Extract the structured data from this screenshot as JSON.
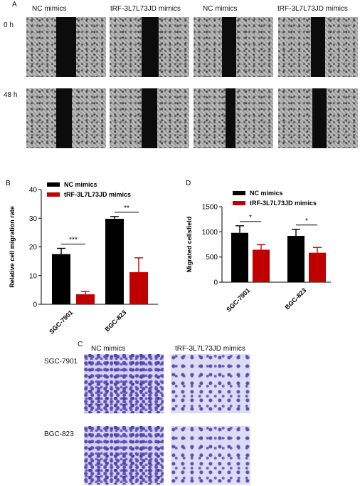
{
  "panel_a": {
    "letter": "A",
    "column_labels": [
      "NC mimics",
      "tRF-3L7L73JD mimics",
      "NC mimics",
      "tRF-3L7L73JD mimics"
    ],
    "row_labels": [
      "0  h",
      "48  h"
    ]
  },
  "panel_c": {
    "letter": "C",
    "column_labels": [
      "NC mimics",
      "tRF-3L7L73JD mimics"
    ],
    "row_labels": [
      "SGC-7901",
      "BGC-823"
    ]
  },
  "chart_data": [
    {
      "type": "bar",
      "panel": "B",
      "categories": [
        "SGC-7901",
        "BGC-823"
      ],
      "series": [
        {
          "name": "NC mimics",
          "values": [
            17.5,
            29.8
          ],
          "errors": [
            2.0,
            0.8
          ],
          "color": "#000000"
        },
        {
          "name": "tRF-3L7L73JD mimics",
          "values": [
            3.5,
            11.2
          ],
          "errors": [
            1.0,
            5.0
          ],
          "color": "#c00000"
        }
      ],
      "ylabel": "Relative cell migration rate",
      "ylim": [
        0,
        40
      ],
      "yticks": [
        0,
        10,
        20,
        30,
        40
      ],
      "significance": [
        "***",
        "**"
      ]
    },
    {
      "type": "bar",
      "panel": "D",
      "categories": [
        "SGC-7901",
        "BGC-823"
      ],
      "series": [
        {
          "name": "NC mimics",
          "values": [
            980,
            920
          ],
          "errors": [
            140,
            130
          ],
          "color": "#000000"
        },
        {
          "name": "tRF-3L7L73JD mimics",
          "values": [
            645,
            585
          ],
          "errors": [
            100,
            105
          ],
          "color": "#c00000"
        }
      ],
      "ylabel": "Migrated cellsfield",
      "ylim": [
        0,
        1500
      ],
      "yticks": [
        0,
        500,
        1000,
        1500
      ],
      "significance": [
        "*",
        "*"
      ]
    }
  ]
}
